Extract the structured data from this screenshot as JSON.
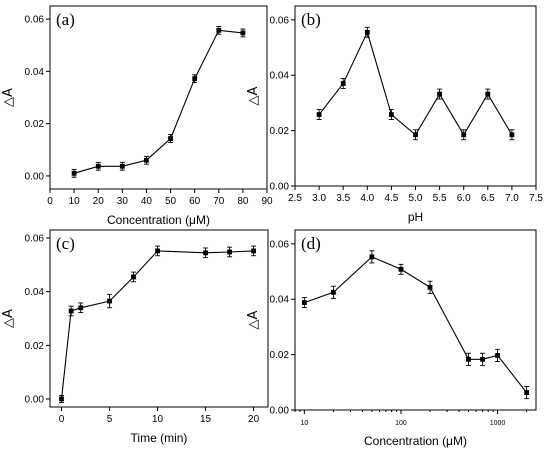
{
  "chart_data": [
    {
      "type": "line",
      "panel_label": "(a)",
      "xlabel": "Concentration (μM)",
      "ylabel": "△A",
      "xscale": "linear",
      "xlim": [
        0,
        90
      ],
      "ylim": [
        -0.005,
        0.065
      ],
      "xticks": [
        0,
        10,
        20,
        30,
        40,
        50,
        60,
        70,
        80,
        90
      ],
      "yticks": [
        0.0,
        0.02,
        0.04,
        0.06
      ],
      "xtick_labels": [
        "0",
        "10",
        "20",
        "30",
        "40",
        "50",
        "60",
        "70",
        "80",
        "90"
      ],
      "ytick_labels": [
        "0.00",
        "0.02",
        "0.04",
        "0.06"
      ],
      "x": [
        10,
        20,
        30,
        40,
        50,
        60,
        70,
        80
      ],
      "y": [
        0.001,
        0.0037,
        0.0037,
        0.006,
        0.0143,
        0.0372,
        0.0557,
        0.0547
      ],
      "err": [
        0.0015,
        0.0015,
        0.0015,
        0.0015,
        0.0015,
        0.0015,
        0.0015,
        0.0015
      ]
    },
    {
      "type": "line",
      "panel_label": "(b)",
      "xlabel": "pH",
      "ylabel": "△A",
      "xscale": "linear",
      "xlim": [
        2.5,
        7.5
      ],
      "ylim": [
        0.0,
        0.065
      ],
      "xticks": [
        2.5,
        3.0,
        3.5,
        4.0,
        4.5,
        5.0,
        5.5,
        6.0,
        6.5,
        7.0,
        7.5
      ],
      "yticks": [
        0.0,
        0.02,
        0.04,
        0.06
      ],
      "xtick_labels": [
        "2.5",
        "3.0",
        "3.5",
        "4.0",
        "4.5",
        "5.0",
        "5.5",
        "6.0",
        "6.5",
        "7.0",
        "7.5"
      ],
      "ytick_labels": [
        "0.00",
        "0.02",
        "0.04",
        "0.06"
      ],
      "x": [
        3.0,
        3.5,
        4.0,
        4.5,
        5.0,
        5.5,
        6.0,
        6.5,
        7.0
      ],
      "y": [
        0.0258,
        0.037,
        0.0555,
        0.0258,
        0.0185,
        0.0332,
        0.0185,
        0.0332,
        0.0185
      ],
      "err": [
        0.0018,
        0.0018,
        0.0018,
        0.0018,
        0.0018,
        0.0018,
        0.0018,
        0.0018,
        0.0018
      ]
    },
    {
      "type": "line",
      "panel_label": "(c)",
      "xlabel": "Time (min)",
      "ylabel": "△A",
      "xscale": "linear",
      "xlim": [
        -1.2,
        21.5
      ],
      "ylim": [
        -0.003,
        0.063
      ],
      "xticks": [
        0,
        5,
        10,
        15,
        20
      ],
      "yticks": [
        0.0,
        0.02,
        0.04,
        0.06
      ],
      "xtick_labels": [
        "0",
        "5",
        "10",
        "15",
        "20"
      ],
      "ytick_labels": [
        "0.00",
        "0.02",
        "0.04",
        "0.06"
      ],
      "x": [
        0,
        1,
        2,
        5,
        7.5,
        10,
        15,
        17.5,
        20
      ],
      "y": [
        0.0,
        0.0328,
        0.034,
        0.0365,
        0.0455,
        0.0552,
        0.0545,
        0.0548,
        0.0552
      ],
      "err": [
        0.0013,
        0.0018,
        0.0018,
        0.0025,
        0.0018,
        0.0018,
        0.0018,
        0.0018,
        0.0018
      ]
    },
    {
      "type": "line",
      "panel_label": "(d)",
      "xlabel": "Concentration (μM)",
      "ylabel": "△A",
      "xscale": "log",
      "xlim": [
        8,
        2500
      ],
      "ylim": [
        0.0,
        0.065
      ],
      "xticks": [
        10,
        100,
        1000
      ],
      "yticks": [
        0.0,
        0.02,
        0.04,
        0.06
      ],
      "xtick_labels": [
        "10",
        "100",
        "1000"
      ],
      "ytick_labels": [
        "0.00",
        "0.02",
        "0.04",
        "0.06"
      ],
      "x": [
        10,
        20,
        50,
        100,
        200,
        500,
        700,
        1000,
        2000
      ],
      "y": [
        0.0388,
        0.0425,
        0.0553,
        0.0508,
        0.0443,
        0.0183,
        0.0183,
        0.0197,
        0.0063
      ],
      "err": [
        0.0018,
        0.0022,
        0.0022,
        0.0018,
        0.0022,
        0.0022,
        0.0022,
        0.0022,
        0.0022
      ]
    }
  ]
}
